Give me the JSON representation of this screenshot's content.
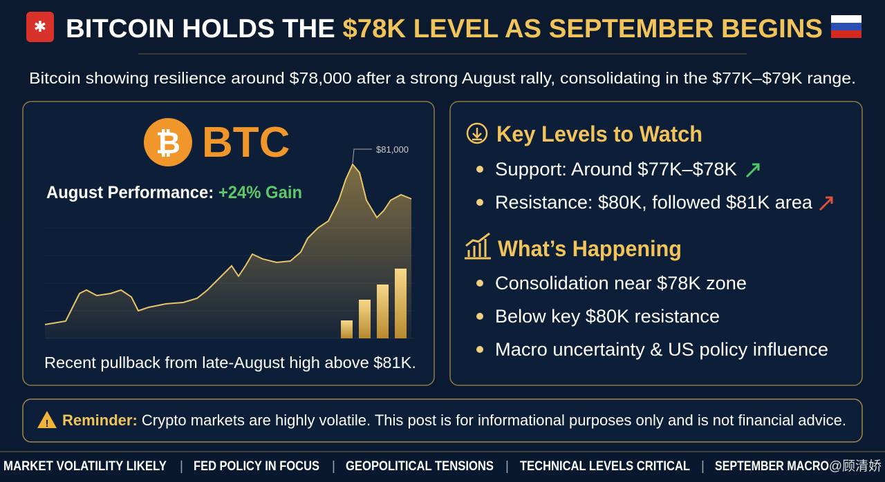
{
  "header": {
    "title_part1": "BITCOIN HOLDS THE",
    "title_part2": "$78K LEVEL AS SEPTEMBER BEGINS",
    "subtitle": "Bitcoin showing resilience around $78,000 after a strong August rally, consolidating in the $77K–$79K range."
  },
  "left_panel": {
    "logo_text": "BTC",
    "performance_label": "August Performance:",
    "performance_value": "+24% Gain",
    "chart_annotation": "$81,000",
    "caption": "Recent pullback from late-August high above $81K."
  },
  "right_panel": {
    "sections": [
      {
        "heading": "Key Levels to Watch",
        "items": [
          "Support: Around $77K–$78K",
          "Resistance: $80K, followed $81K area"
        ]
      },
      {
        "heading": "What’s Happening",
        "items": [
          "Consolidation near $78K zone",
          "Below key $80K resistance",
          "Macro uncertainty & US policy influence"
        ]
      }
    ]
  },
  "reminder": {
    "label": "Reminder:",
    "text": "Crypto markets are highly volatile. This post is for informational purposes only and is not financial advice."
  },
  "ticker": [
    "MARKET VOLATILITY LIKELY",
    "FED POLICY IN FOCUS",
    "GEOPOLITICAL TENSIONS",
    "TECHNICAL LEVELS CRITICAL",
    "SEPTEMBER MACRO"
  ],
  "watermark": "@顾清娇"
}
